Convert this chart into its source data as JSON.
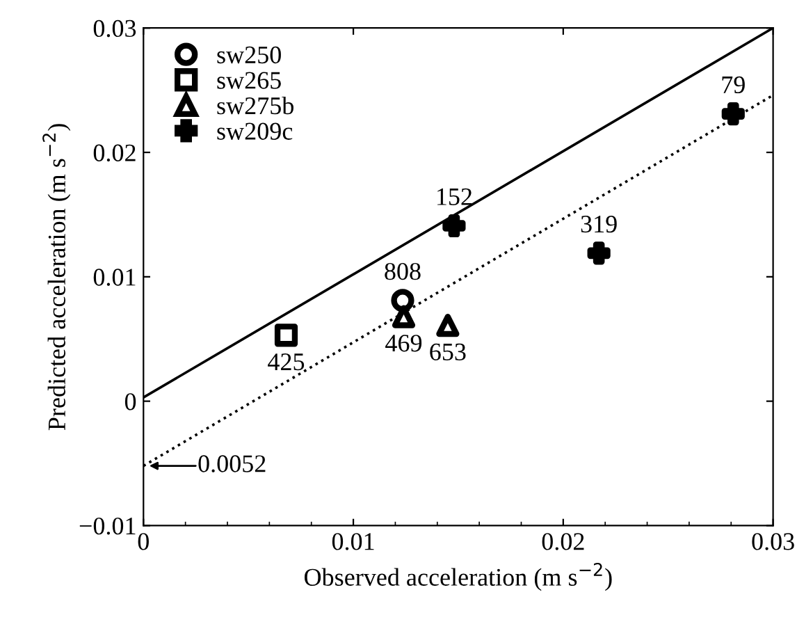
{
  "chart_data": {
    "type": "scatter",
    "xlabel": "Observed acceleration (m s$^{−2}$)",
    "ylabel": "Predicted acceleration (m s$^{−2}$)",
    "xlim": [
      0,
      0.03
    ],
    "ylim": [
      -0.01,
      0.03
    ],
    "xticks": [
      0,
      0.01,
      0.02,
      0.03
    ],
    "yticks": [
      {
        "value": -0.01,
        "label": "−0.01"
      },
      0,
      0.01,
      0.02,
      0.03
    ],
    "grid": false,
    "legend": "top left",
    "series": [
      {
        "name": "sw250",
        "marker": "circle",
        "color": "#000000",
        "x": [
          0.01235
        ],
        "values": [
          0.0081
        ]
      },
      {
        "name": "sw265",
        "marker": "square",
        "color": "#000000",
        "x": [
          0.0068
        ],
        "values": [
          0.0053
        ]
      },
      {
        "name": "sw275b",
        "marker": "triangle",
        "color": "#000000",
        "x": [
          0.0124,
          0.0145
        ],
        "values": [
          0.0068,
          0.0061
        ]
      },
      {
        "name": "sw209c",
        "marker": "cross",
        "color": "#000000",
        "x": [
          0.0148,
          0.0217,
          0.0281
        ],
        "values": [
          0.0141,
          0.0119,
          0.0231
        ]
      },
      {
        "type": "line",
        "line_style": "solid",
        "color": "#000000",
        "x": [
          0,
          0.03
        ],
        "values": [
          0.0003,
          0.03
        ]
      },
      {
        "type": "line",
        "line_style": "dotted",
        "color": "#000000",
        "x": [
          0,
          0.03
        ],
        "values": [
          -0.0052,
          0.0246
        ]
      }
    ],
    "annotations": [
      {
        "text": "808",
        "x": 0.01235,
        "y": 0.0081
      },
      {
        "text": "425",
        "x": 0.0068,
        "y": 0.0053
      },
      {
        "text": "469",
        "x": 0.0124,
        "y": 0.0068
      },
      {
        "text": "653",
        "x": 0.0145,
        "y": 0.0061
      },
      {
        "text": "152",
        "x": 0.0148,
        "y": 0.0141
      },
      {
        "text": "319",
        "x": 0.0217,
        "y": 0.0119
      },
      {
        "text": "79",
        "x": 0.0281,
        "y": 0.0231
      },
      {
        "text": "0.0052",
        "x": 0,
        "y": -0.0052
      }
    ]
  }
}
